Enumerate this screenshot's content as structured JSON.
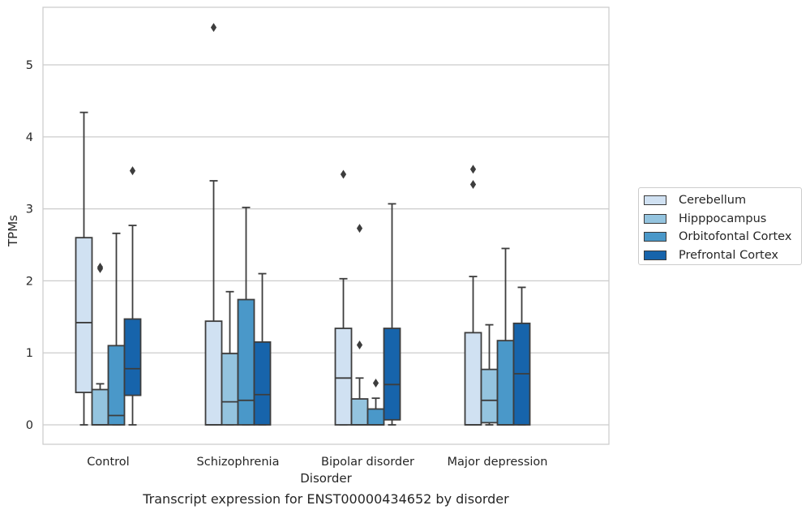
{
  "chart_data": {
    "type": "box",
    "title": "",
    "caption": "Transcript expression for ENST00000434652 by disorder",
    "xlabel": "Disorder",
    "ylabel": "TPMs",
    "ylim": [
      -0.27,
      5.8
    ],
    "yticks": [
      0,
      1,
      2,
      3,
      4,
      5
    ],
    "grid": "horizontal",
    "legend_position": "right",
    "categories": [
      "Control",
      "Schizophrenia",
      "Bipolar disorder",
      "Major depression"
    ],
    "series": [
      {
        "name": "Cerebellum",
        "color": "#d0e1f2",
        "boxes": [
          {
            "whisker_low": 0.0,
            "q1": 0.45,
            "median": 1.42,
            "q3": 2.6,
            "whisker_high": 4.34,
            "outliers": []
          },
          {
            "whisker_low": 0.0,
            "q1": 0.0,
            "median": 0.0,
            "q3": 1.44,
            "whisker_high": 3.39,
            "outliers": [
              5.52
            ]
          },
          {
            "whisker_low": 0.0,
            "q1": 0.0,
            "median": 0.65,
            "q3": 1.34,
            "whisker_high": 2.03,
            "outliers": [
              3.48
            ]
          },
          {
            "whisker_low": 0.0,
            "q1": 0.0,
            "median": 0.0,
            "q3": 1.28,
            "whisker_high": 2.06,
            "outliers": [
              3.34,
              3.55
            ]
          }
        ]
      },
      {
        "name": "Hipppocampus",
        "color": "#94c4df",
        "boxes": [
          {
            "whisker_low": 0.0,
            "q1": 0.0,
            "median": 0.0,
            "q3": 0.49,
            "whisker_high": 0.57,
            "outliers": [
              2.17,
              2.19
            ]
          },
          {
            "whisker_low": 0.0,
            "q1": 0.0,
            "median": 0.32,
            "q3": 0.99,
            "whisker_high": 1.85,
            "outliers": []
          },
          {
            "whisker_low": 0.0,
            "q1": 0.0,
            "median": 0.0,
            "q3": 0.36,
            "whisker_high": 0.65,
            "outliers": [
              1.11,
              2.73
            ]
          },
          {
            "whisker_low": 0.0,
            "q1": 0.03,
            "median": 0.34,
            "q3": 0.77,
            "whisker_high": 1.39,
            "outliers": []
          }
        ]
      },
      {
        "name": "Orbitofontal Cortex",
        "color": "#4a98c9",
        "boxes": [
          {
            "whisker_low": 0.0,
            "q1": 0.0,
            "median": 0.13,
            "q3": 1.1,
            "whisker_high": 2.66,
            "outliers": []
          },
          {
            "whisker_low": 0.0,
            "q1": 0.0,
            "median": 0.34,
            "q3": 1.74,
            "whisker_high": 3.02,
            "outliers": []
          },
          {
            "whisker_low": 0.0,
            "q1": 0.0,
            "median": 0.0,
            "q3": 0.22,
            "whisker_high": 0.37,
            "outliers": [
              0.58
            ]
          },
          {
            "whisker_low": 0.0,
            "q1": 0.0,
            "median": 0.0,
            "q3": 1.17,
            "whisker_high": 2.45,
            "outliers": []
          }
        ]
      },
      {
        "name": "Prefrontal Cortex",
        "color": "#1764ab",
        "boxes": [
          {
            "whisker_low": 0.0,
            "q1": 0.41,
            "median": 0.78,
            "q3": 1.47,
            "whisker_high": 2.77,
            "outliers": [
              3.53
            ]
          },
          {
            "whisker_low": 0.0,
            "q1": 0.0,
            "median": 0.42,
            "q3": 1.15,
            "whisker_high": 2.1,
            "outliers": []
          },
          {
            "whisker_low": 0.0,
            "q1": 0.07,
            "median": 0.56,
            "q3": 1.34,
            "whisker_high": 3.07,
            "outliers": []
          },
          {
            "whisker_low": 0.0,
            "q1": 0.0,
            "median": 0.71,
            "q3": 1.41,
            "whisker_high": 1.91,
            "outliers": []
          }
        ]
      }
    ]
  }
}
